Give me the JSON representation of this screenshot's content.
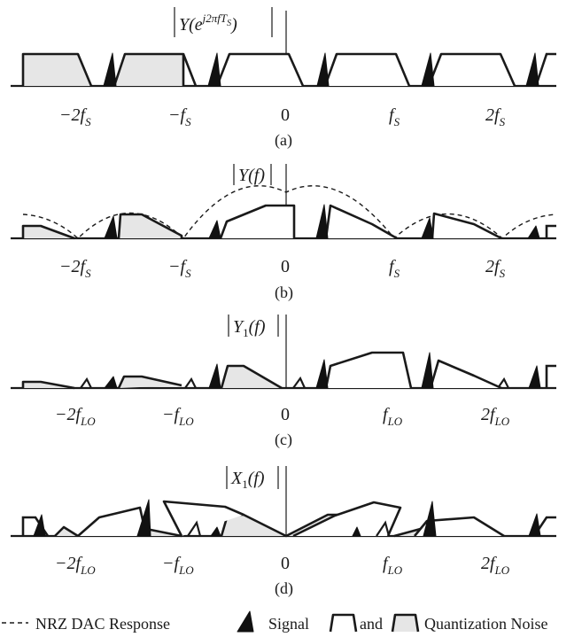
{
  "panels": {
    "a": {
      "ylabel": "|Y(e^{j2πfT_S})|",
      "caption": "(a)",
      "ticks": [
        "−2f_S",
        "−f_S",
        "0",
        "f_S",
        "2f_S"
      ]
    },
    "b": {
      "ylabel": "|Y(f)|",
      "caption": "(b)",
      "ticks": [
        "−2f_S",
        "−f_S",
        "0",
        "f_S",
        "2f_S"
      ]
    },
    "c": {
      "ylabel": "|Y_1(f)|",
      "caption": "(c)",
      "ticks": [
        "−2f_LO",
        "−f_LO",
        "0",
        "f_LO",
        "2f_LO"
      ]
    },
    "d": {
      "ylabel": "|X_1(f)|",
      "caption": "(d)",
      "ticks": [
        "−2f_LO",
        "−f_LO",
        "0",
        "f_LO",
        "2f_LO"
      ]
    }
  },
  "legend": {
    "dac": "NRZ DAC Response",
    "signal": "Signal",
    "and": "and",
    "quant": "Quantization Noise"
  },
  "colors": {
    "ink": "#1a1a1a",
    "noise_fill": "#e6e6e6",
    "signal_fill": "#111111"
  }
}
